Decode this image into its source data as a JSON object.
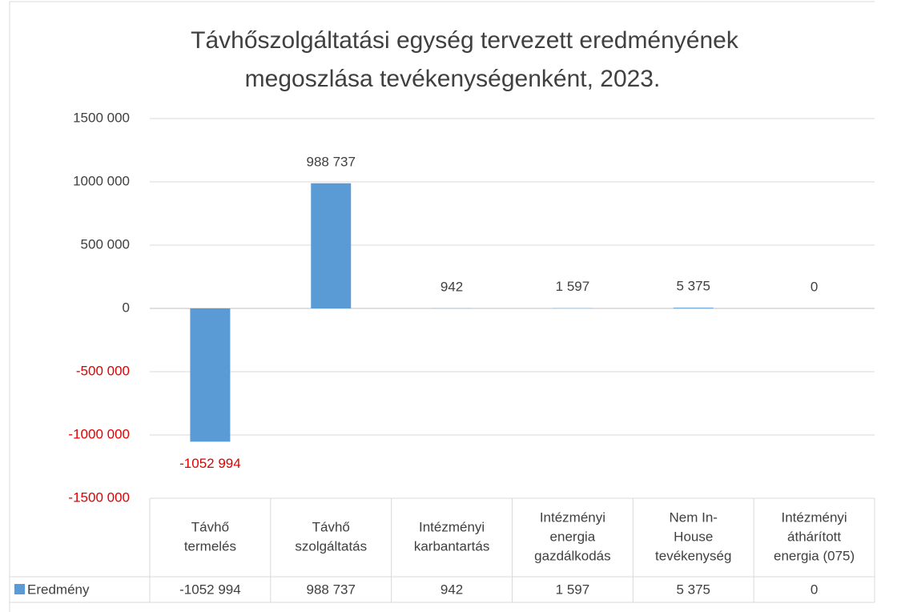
{
  "chart_data": {
    "type": "bar",
    "title": [
      "Távhőszolgáltatási egység tervezett eredményének",
      "megoszlása tevékenységenként, 2023."
    ],
    "categories": [
      [
        "Távhő",
        "termelés"
      ],
      [
        "Távhő",
        "szolgáltatás"
      ],
      [
        "Intézményi",
        "karbantartás"
      ],
      [
        "Intézményi",
        "energia",
        "gazdálkodás"
      ],
      [
        "Nem In-",
        "House",
        "tevékenység"
      ],
      [
        "Intézményi",
        "áthárított",
        "energia (075)"
      ]
    ],
    "series": [
      {
        "name": "Eredmény",
        "color": "#5b9bd5",
        "values": [
          -1052994,
          988737,
          942,
          1597,
          5375,
          0
        ],
        "value_labels": [
          "-1052 994",
          "988 737",
          "942",
          "1 597",
          "5 375",
          "0"
        ]
      }
    ],
    "ylim": [
      -1500000,
      1500000
    ],
    "yticks": [
      {
        "value": -1500000,
        "label": "-1500 000"
      },
      {
        "value": -1000000,
        "label": "-1000 000"
      },
      {
        "value": -500000,
        "label": "-500 000"
      },
      0,
      {
        "value": 500000,
        "label": "500 000"
      },
      {
        "value": 1000000,
        "label": "1000 000"
      },
      {
        "value": 1500000,
        "label": "1500 000"
      }
    ],
    "grid": true,
    "negative_color": "#e00000"
  }
}
